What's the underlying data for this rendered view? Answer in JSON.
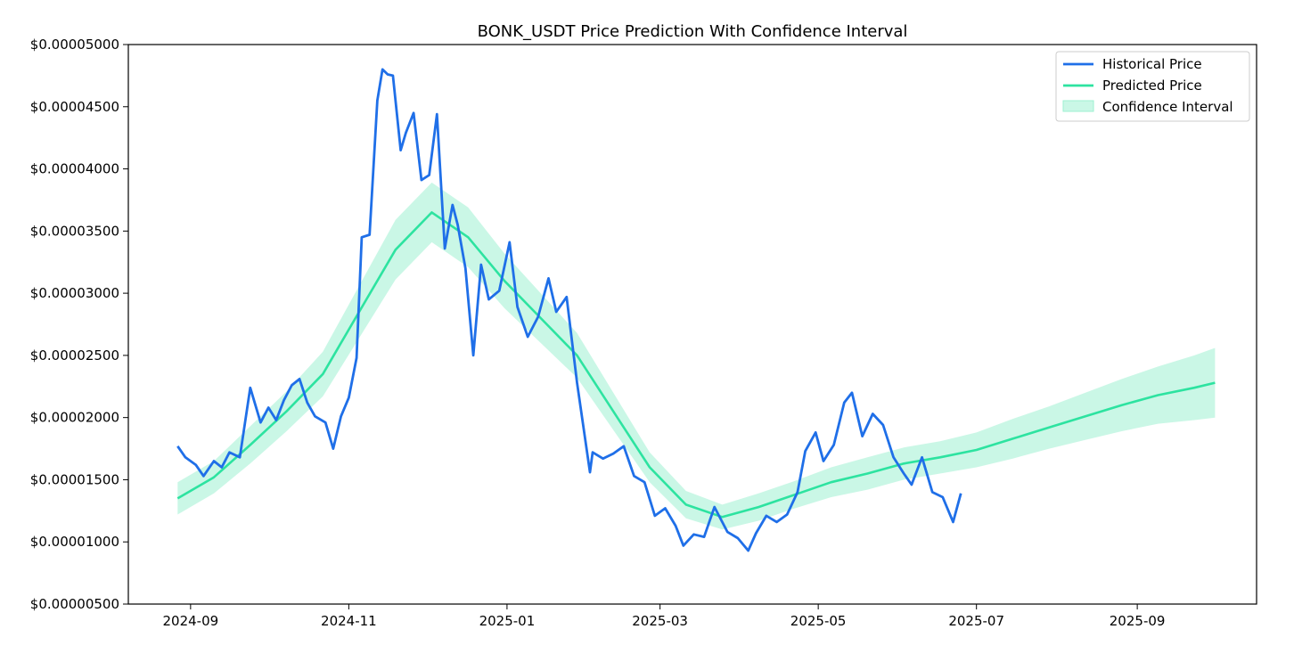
{
  "chart_data": {
    "type": "line",
    "title": "BONK_USDT Price Prediction With Confidence Interval",
    "xlabel": "",
    "ylabel": "",
    "ylim": [
      5e-06,
      5e-05
    ],
    "xlim": [
      "2024-08-08",
      "2025-10-17"
    ],
    "grid": false,
    "legend_position": "top-right",
    "y_ticks": [
      5e-06,
      1e-05,
      1.5e-05,
      2e-05,
      2.5e-05,
      3e-05,
      3.5e-05,
      4e-05,
      4.5e-05,
      5e-05
    ],
    "y_tick_labels": [
      "$0.00000500",
      "$0.00001000",
      "$0.00001500",
      "$0.00002000",
      "$0.00002500",
      "$0.00003000",
      "$0.00003500",
      "$0.00004000",
      "$0.00004500",
      "$0.00005000"
    ],
    "x_ticks": [
      "2024-09-01",
      "2024-11-01",
      "2025-01-01",
      "2025-03-01",
      "2025-05-01",
      "2025-07-01",
      "2025-09-01"
    ],
    "x_tick_labels": [
      "2024-09",
      "2024-11",
      "2025-01",
      "2025-03",
      "2025-05",
      "2025-07",
      "2025-09"
    ],
    "colors": {
      "historical": "#1f6fe8",
      "predicted": "#2de3a0",
      "interval": "#9ef0d2"
    },
    "series": [
      {
        "name": "Historical Price",
        "type": "line",
        "x": [
          "2024-08-27",
          "2024-08-30",
          "2024-09-03",
          "2024-09-06",
          "2024-09-10",
          "2024-09-13",
          "2024-09-16",
          "2024-09-20",
          "2024-09-24",
          "2024-09-28",
          "2024-10-01",
          "2024-10-04",
          "2024-10-07",
          "2024-10-10",
          "2024-10-13",
          "2024-10-16",
          "2024-10-19",
          "2024-10-23",
          "2024-10-26",
          "2024-10-29",
          "2024-11-01",
          "2024-11-04",
          "2024-11-06",
          "2024-11-09",
          "2024-11-12",
          "2024-11-14",
          "2024-11-16",
          "2024-11-18",
          "2024-11-21",
          "2024-11-23",
          "2024-11-26",
          "2024-11-29",
          "2024-12-02",
          "2024-12-05",
          "2024-12-08",
          "2024-12-11",
          "2024-12-13",
          "2024-12-16",
          "2024-12-19",
          "2024-12-22",
          "2024-12-25",
          "2024-12-29",
          "2025-01-02",
          "2025-01-05",
          "2025-01-09",
          "2025-01-13",
          "2025-01-17",
          "2025-01-20",
          "2025-01-24",
          "2025-01-28",
          "2025-02-02",
          "2025-02-03",
          "2025-02-07",
          "2025-02-11",
          "2025-02-15",
          "2025-02-19",
          "2025-02-23",
          "2025-02-27",
          "2025-03-03",
          "2025-03-07",
          "2025-03-10",
          "2025-03-14",
          "2025-03-18",
          "2025-03-22",
          "2025-03-27",
          "2025-03-31",
          "2025-04-04",
          "2025-04-07",
          "2025-04-11",
          "2025-04-15",
          "2025-04-19",
          "2025-04-23",
          "2025-04-26",
          "2025-04-30",
          "2025-05-03",
          "2025-05-07",
          "2025-05-11",
          "2025-05-14",
          "2025-05-18",
          "2025-05-22",
          "2025-05-26",
          "2025-05-30",
          "2025-06-03",
          "2025-06-06",
          "2025-06-10",
          "2025-06-14",
          "2025-06-18",
          "2025-06-22",
          "2025-06-25"
        ],
        "values": [
          1.77e-05,
          1.68e-05,
          1.62e-05,
          1.53e-05,
          1.65e-05,
          1.6e-05,
          1.72e-05,
          1.68e-05,
          2.24e-05,
          1.96e-05,
          2.08e-05,
          1.98e-05,
          2.14e-05,
          2.26e-05,
          2.31e-05,
          2.12e-05,
          2.01e-05,
          1.96e-05,
          1.75e-05,
          2.01e-05,
          2.16e-05,
          2.48e-05,
          3.45e-05,
          3.47e-05,
          4.55e-05,
          4.8e-05,
          4.76e-05,
          4.75e-05,
          4.15e-05,
          4.29e-05,
          4.45e-05,
          3.91e-05,
          3.95e-05,
          4.44e-05,
          3.36e-05,
          3.71e-05,
          3.55e-05,
          3.2e-05,
          2.5e-05,
          3.23e-05,
          2.95e-05,
          3.02e-05,
          3.41e-05,
          2.89e-05,
          2.65e-05,
          2.81e-05,
          3.12e-05,
          2.85e-05,
          2.97e-05,
          2.28e-05,
          1.56e-05,
          1.72e-05,
          1.67e-05,
          1.71e-05,
          1.77e-05,
          1.53e-05,
          1.48e-05,
          1.21e-05,
          1.27e-05,
          1.13e-05,
          9.7e-06,
          1.06e-05,
          1.04e-05,
          1.28e-05,
          1.08e-05,
          1.03e-05,
          9.3e-06,
          1.07e-05,
          1.21e-05,
          1.16e-05,
          1.22e-05,
          1.4e-05,
          1.73e-05,
          1.88e-05,
          1.65e-05,
          1.78e-05,
          2.12e-05,
          2.2e-05,
          1.85e-05,
          2.03e-05,
          1.94e-05,
          1.68e-05,
          1.55e-05,
          1.46e-05,
          1.68e-05,
          1.4e-05,
          1.36e-05,
          1.16e-05,
          1.39e-05
        ]
      },
      {
        "name": "Predicted Price",
        "type": "line",
        "x": [
          "2024-08-27",
          "2024-09-10",
          "2024-09-24",
          "2024-10-08",
          "2024-10-22",
          "2024-11-05",
          "2024-11-19",
          "2024-12-03",
          "2024-12-17",
          "2024-12-31",
          "2025-01-14",
          "2025-01-28",
          "2025-02-11",
          "2025-02-25",
          "2025-03-11",
          "2025-03-25",
          "2025-04-08",
          "2025-04-22",
          "2025-05-06",
          "2025-05-20",
          "2025-06-03",
          "2025-06-17",
          "2025-07-01",
          "2025-07-15",
          "2025-07-29",
          "2025-08-12",
          "2025-08-26",
          "2025-09-09",
          "2025-09-23",
          "2025-10-01"
        ],
        "values": [
          1.35e-05,
          1.52e-05,
          1.78e-05,
          2.05e-05,
          2.35e-05,
          2.85e-05,
          3.35e-05,
          3.65e-05,
          3.45e-05,
          3.1e-05,
          2.8e-05,
          2.5e-05,
          2.05e-05,
          1.6e-05,
          1.3e-05,
          1.2e-05,
          1.28e-05,
          1.38e-05,
          1.48e-05,
          1.55e-05,
          1.63e-05,
          1.68e-05,
          1.74e-05,
          1.83e-05,
          1.92e-05,
          2.01e-05,
          2.1e-05,
          2.18e-05,
          2.24e-05,
          2.28e-05
        ]
      },
      {
        "name": "Confidence Interval",
        "type": "band",
        "x": [
          "2024-08-27",
          "2024-09-10",
          "2024-09-24",
          "2024-10-08",
          "2024-10-22",
          "2024-11-05",
          "2024-11-19",
          "2024-12-03",
          "2024-12-17",
          "2024-12-31",
          "2025-01-14",
          "2025-01-28",
          "2025-02-11",
          "2025-02-25",
          "2025-03-11",
          "2025-03-25",
          "2025-04-08",
          "2025-04-22",
          "2025-05-06",
          "2025-05-20",
          "2025-06-03",
          "2025-06-17",
          "2025-07-01",
          "2025-07-15",
          "2025-07-29",
          "2025-08-12",
          "2025-08-26",
          "2025-09-09",
          "2025-09-23",
          "2025-10-01"
        ],
        "lower": [
          1.22e-05,
          1.39e-05,
          1.63e-05,
          1.89e-05,
          2.17e-05,
          2.64e-05,
          3.11e-05,
          3.41e-05,
          3.21e-05,
          2.88e-05,
          2.6e-05,
          2.32e-05,
          1.9e-05,
          1.48e-05,
          1.19e-05,
          1.1e-05,
          1.17e-05,
          1.27e-05,
          1.36e-05,
          1.42e-05,
          1.5e-05,
          1.55e-05,
          1.6e-05,
          1.67e-05,
          1.75e-05,
          1.82e-05,
          1.89e-05,
          1.95e-05,
          1.98e-05,
          2e-05
        ],
        "upper": [
          1.48e-05,
          1.65e-05,
          1.93e-05,
          2.21e-05,
          2.53e-05,
          3.06e-05,
          3.59e-05,
          3.89e-05,
          3.69e-05,
          3.32e-05,
          3e-05,
          2.68e-05,
          2.2e-05,
          1.72e-05,
          1.41e-05,
          1.3e-05,
          1.39e-05,
          1.49e-05,
          1.6e-05,
          1.68e-05,
          1.76e-05,
          1.81e-05,
          1.88e-05,
          1.99e-05,
          2.09e-05,
          2.2e-05,
          2.31e-05,
          2.41e-05,
          2.5e-05,
          2.56e-05
        ]
      }
    ]
  }
}
